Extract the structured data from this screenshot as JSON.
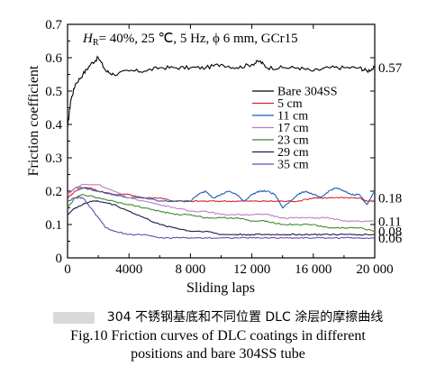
{
  "chart_data": {
    "type": "line",
    "condition": {
      "prefix": "H",
      "subscript": "R",
      "rest": "= 40%, 25 ℃, 5 Hz, ϕ 6 mm, GCr15"
    },
    "xlabel": "Sliding laps",
    "ylabel": "Friction coefficient",
    "xlim": [
      0,
      20000
    ],
    "ylim": [
      0,
      0.7
    ],
    "xticks": [
      0,
      4000,
      8000,
      12000,
      16000,
      20000
    ],
    "xtick_labels": [
      "0",
      "4000",
      "8 000",
      "12 000",
      "16 000",
      "20 000"
    ],
    "yticks": [
      0,
      0.1,
      0.2,
      0.3,
      0.4,
      0.5,
      0.6,
      0.7
    ],
    "ytick_labels": [
      "0",
      "0.1",
      "0.2",
      "0.3",
      "0.4",
      "0.5",
      "0.6",
      "0.7"
    ],
    "legend_position": "center-right",
    "end_labels": [
      {
        "text": "0.57",
        "y": 0.57
      },
      {
        "text": "0.18",
        "y": 0.18
      },
      {
        "text": "0.11",
        "y": 0.11
      },
      {
        "text": "0.08",
        "y": 0.08
      },
      {
        "text": "0.06",
        "y": 0.06
      }
    ],
    "series": [
      {
        "name": "Bare 304SS",
        "color": "#000000",
        "x": [
          0,
          200,
          500,
          1000,
          1500,
          2000,
          2500,
          3000,
          4000,
          5000,
          6000,
          7000,
          8000,
          9000,
          10000,
          11000,
          12000,
          12500,
          13000,
          14000,
          15000,
          16000,
          17000,
          18000,
          19000,
          19500,
          20000
        ],
        "y": [
          0.39,
          0.47,
          0.52,
          0.55,
          0.58,
          0.6,
          0.56,
          0.55,
          0.56,
          0.56,
          0.57,
          0.57,
          0.57,
          0.57,
          0.58,
          0.57,
          0.58,
          0.59,
          0.57,
          0.57,
          0.57,
          0.56,
          0.57,
          0.57,
          0.57,
          0.56,
          0.57
        ]
      },
      {
        "name": "5 cm",
        "color": "#d62728",
        "x": [
          0,
          500,
          1000,
          1500,
          2000,
          3000,
          4000,
          5000,
          6000,
          7000,
          8000,
          9000,
          10000,
          11000,
          12000,
          13000,
          14000,
          15000,
          16000,
          17000,
          18000,
          19000,
          19500,
          20000
        ],
        "y": [
          0.18,
          0.2,
          0.21,
          0.21,
          0.2,
          0.19,
          0.19,
          0.18,
          0.18,
          0.17,
          0.17,
          0.17,
          0.17,
          0.17,
          0.17,
          0.17,
          0.17,
          0.17,
          0.18,
          0.18,
          0.18,
          0.18,
          0.17,
          0.17
        ]
      },
      {
        "name": "11 cm",
        "color": "#1f5fb0",
        "x": [
          0,
          500,
          1000,
          2000,
          3000,
          4000,
          5000,
          6000,
          7000,
          8000,
          8500,
          9000,
          9500,
          10000,
          10500,
          11000,
          11500,
          12000,
          12500,
          13000,
          13500,
          14000,
          14500,
          15000,
          15500,
          16000,
          16500,
          17000,
          17500,
          18000,
          18500,
          19000,
          19500,
          20000
        ],
        "y": [
          0.19,
          0.21,
          0.21,
          0.2,
          0.19,
          0.18,
          0.18,
          0.17,
          0.17,
          0.17,
          0.19,
          0.2,
          0.18,
          0.19,
          0.2,
          0.19,
          0.17,
          0.19,
          0.2,
          0.2,
          0.19,
          0.15,
          0.17,
          0.19,
          0.2,
          0.19,
          0.18,
          0.2,
          0.21,
          0.2,
          0.19,
          0.19,
          0.16,
          0.2
        ]
      },
      {
        "name": "17 cm",
        "color": "#c07cc0",
        "x": [
          0,
          500,
          1000,
          2000,
          3000,
          4000,
          5000,
          6000,
          7000,
          8000,
          9000,
          10000,
          11000,
          12000,
          13000,
          14000,
          15000,
          16000,
          17000,
          18000,
          19000,
          20000
        ],
        "y": [
          0.19,
          0.21,
          0.22,
          0.22,
          0.2,
          0.18,
          0.17,
          0.16,
          0.15,
          0.14,
          0.14,
          0.13,
          0.13,
          0.13,
          0.13,
          0.12,
          0.12,
          0.12,
          0.12,
          0.11,
          0.11,
          0.11
        ]
      },
      {
        "name": "23 cm",
        "color": "#3a8a2a",
        "x": [
          0,
          500,
          1000,
          2000,
          3000,
          4000,
          5000,
          6000,
          7000,
          8000,
          9000,
          10000,
          11000,
          12000,
          13000,
          14000,
          15000,
          16000,
          17000,
          18000,
          19000,
          20000
        ],
        "y": [
          0.15,
          0.18,
          0.19,
          0.18,
          0.17,
          0.16,
          0.15,
          0.14,
          0.13,
          0.13,
          0.12,
          0.12,
          0.12,
          0.11,
          0.11,
          0.1,
          0.1,
          0.1,
          0.09,
          0.09,
          0.09,
          0.08
        ]
      },
      {
        "name": "29 cm",
        "color": "#1a1a4a",
        "x": [
          0,
          500,
          1000,
          1500,
          2000,
          3000,
          4000,
          5000,
          6000,
          7000,
          8000,
          9000,
          10000,
          11000,
          12000,
          13000,
          14000,
          15000,
          16000,
          17000,
          18000,
          19000,
          20000
        ],
        "y": [
          0.13,
          0.15,
          0.16,
          0.17,
          0.17,
          0.16,
          0.14,
          0.12,
          0.1,
          0.09,
          0.08,
          0.08,
          0.07,
          0.07,
          0.07,
          0.07,
          0.07,
          0.07,
          0.07,
          0.07,
          0.07,
          0.07,
          0.07
        ]
      },
      {
        "name": "35 cm",
        "color": "#6a4ab0",
        "x": [
          0,
          500,
          1000,
          1500,
          2000,
          2500,
          3000,
          4000,
          5000,
          6000,
          7000,
          8000,
          9000,
          10000,
          11000,
          12000,
          13000,
          14000,
          15000,
          16000,
          17000,
          18000,
          19000,
          20000
        ],
        "y": [
          0.17,
          0.18,
          0.18,
          0.15,
          0.12,
          0.09,
          0.08,
          0.07,
          0.07,
          0.06,
          0.06,
          0.06,
          0.06,
          0.06,
          0.06,
          0.06,
          0.06,
          0.06,
          0.06,
          0.06,
          0.06,
          0.06,
          0.06,
          0.06
        ]
      }
    ]
  },
  "caption": {
    "line1": "304 不锈钢基底和不同位置 DLC 涂层的摩擦曲线",
    "line2": "Fig.10 Friction curves of DLC coatings in different",
    "line3": "positions and bare 304SS tube"
  }
}
